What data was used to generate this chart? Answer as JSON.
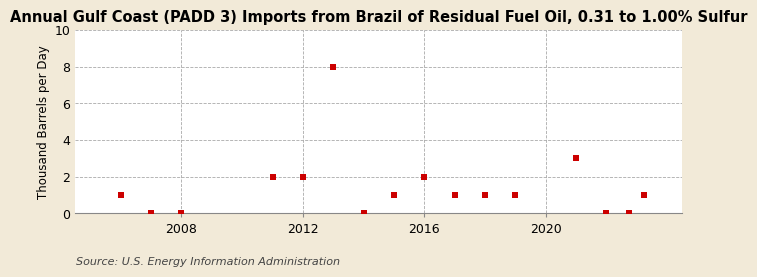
{
  "title": "Annual Gulf Coast (PADD 3) Imports from Brazil of Residual Fuel Oil, 0.31 to 1.00% Sulfur",
  "ylabel": "Thousand Barrels per Day",
  "source": "Source: U.S. Energy Information Administration",
  "background_color": "#f2ead8",
  "plot_bg_color": "#ffffff",
  "marker_color": "#cc0000",
  "marker_size": 4,
  "ylim": [
    0,
    10
  ],
  "yticks": [
    0,
    2,
    4,
    6,
    8,
    10
  ],
  "xlim": [
    2004.5,
    2024.5
  ],
  "xticks": [
    2008,
    2012,
    2016,
    2020
  ],
  "years": [
    2006,
    2007,
    2008,
    2011,
    2012,
    2013,
    2014,
    2015,
    2016,
    2017,
    2018,
    2019,
    2021,
    2022,
    2023,
    2023
  ],
  "values": [
    1,
    0,
    0,
    2,
    2,
    8,
    0,
    1,
    2,
    1,
    1,
    1,
    3,
    0,
    0,
    1
  ],
  "year_offsets": [
    0,
    0,
    0,
    0,
    0,
    0,
    0,
    0,
    0,
    0,
    0,
    0,
    0,
    0,
    -0.25,
    0.25
  ],
  "grid_color": "#aaaaaa",
  "title_fontsize": 10.5,
  "ylabel_fontsize": 8.5,
  "tick_fontsize": 9,
  "source_fontsize": 8
}
